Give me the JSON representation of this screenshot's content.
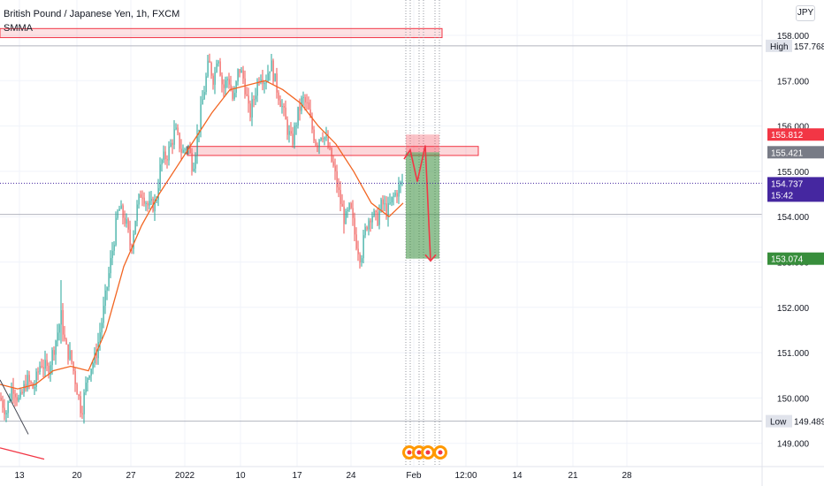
{
  "legend": {
    "title": "British Pound / Japanese Yen, 1h, FXCM",
    "indicator": "SMMA"
  },
  "currency_badge": "JPY",
  "price_labels": {
    "high_tag": "High",
    "high": "157.768",
    "low_tag": "Low",
    "low": "149.489",
    "stop": "155.812",
    "entry": "155.421",
    "last": "154.737",
    "countdown": "15:42",
    "target": "153.074"
  },
  "colors": {
    "up": "#26a69a",
    "down": "#ef5350",
    "line": "#f26522",
    "last": "#4527a0",
    "stop": "#f23645",
    "target": "#388e3c",
    "entry": "#787b86"
  },
  "chart_data": {
    "type": "candlestick",
    "symbol": "British Pound / Japanese Yen",
    "interval": "1h",
    "source": "FXCM",
    "indicator": "SMMA",
    "y_ticks": [
      149.0,
      150.0,
      151.0,
      152.0,
      153.0,
      154.0,
      155.0,
      156.0,
      157.0,
      158.0
    ],
    "ylim": [
      148.7,
      158.4
    ],
    "x_ticks": [
      "13",
      "20",
      "27",
      "2022",
      "10",
      "17",
      "24",
      "Feb",
      "12:00",
      "14",
      "21",
      "28"
    ],
    "trade": {
      "entry": 155.421,
      "stop": 155.812,
      "target": 153.074
    },
    "zone_high": [
      157.95,
      158.15
    ],
    "zone_mid": [
      155.35,
      155.55
    ],
    "swing_high": 157.768,
    "swing_low": 149.489,
    "last_price": 154.737,
    "close_path": [
      [
        0,
        150.0
      ],
      [
        7,
        149.7
      ],
      [
        14,
        150.3
      ],
      [
        22,
        149.9
      ],
      [
        30,
        150.4
      ],
      [
        38,
        150.2
      ],
      [
        46,
        150.8
      ],
      [
        54,
        150.6
      ],
      [
        62,
        151.2
      ],
      [
        69,
        151.8
      ],
      [
        74,
        151.1
      ],
      [
        80,
        150.9
      ],
      [
        86,
        150.3
      ],
      [
        92,
        149.7
      ],
      [
        100,
        150.6
      ],
      [
        108,
        150.9
      ],
      [
        116,
        151.8
      ],
      [
        122,
        152.6
      ],
      [
        128,
        153.4
      ],
      [
        134,
        154.2
      ],
      [
        142,
        153.9
      ],
      [
        148,
        153.3
      ],
      [
        154,
        154.1
      ],
      [
        160,
        154.6
      ],
      [
        168,
        154.2
      ],
      [
        176,
        154.3
      ],
      [
        182,
        155.2
      ],
      [
        190,
        155.4
      ],
      [
        198,
        155.9
      ],
      [
        206,
        155.4
      ],
      [
        212,
        155.6
      ],
      [
        218,
        155.1
      ],
      [
        224,
        155.9
      ],
      [
        230,
        156.7
      ],
      [
        236,
        157.4
      ],
      [
        242,
        157.0
      ],
      [
        246,
        157.7
      ],
      [
        252,
        156.8
      ],
      [
        258,
        157.1
      ],
      [
        264,
        156.5
      ],
      [
        270,
        157.3
      ],
      [
        276,
        157.0
      ],
      [
        282,
        156.2
      ],
      [
        288,
        156.7
      ],
      [
        294,
        157.2
      ],
      [
        300,
        157.0
      ],
      [
        306,
        157.4
      ],
      [
        312,
        156.9
      ],
      [
        318,
        156.5
      ],
      [
        324,
        156.0
      ],
      [
        330,
        155.6
      ],
      [
        336,
        156.2
      ],
      [
        342,
        156.6
      ],
      [
        348,
        156.4
      ],
      [
        352,
        156.0
      ],
      [
        358,
        155.6
      ],
      [
        364,
        155.9
      ],
      [
        370,
        155.6
      ],
      [
        378,
        155.0
      ],
      [
        384,
        154.4
      ],
      [
        390,
        153.9
      ],
      [
        396,
        154.2
      ],
      [
        402,
        153.5
      ],
      [
        408,
        153.1
      ],
      [
        414,
        153.8
      ],
      [
        420,
        154.1
      ],
      [
        426,
        153.9
      ],
      [
        432,
        154.3
      ],
      [
        438,
        154.1
      ],
      [
        444,
        154.4
      ],
      [
        450,
        154.6
      ],
      [
        456,
        154.8
      ]
    ],
    "smma_path": [
      [
        0,
        150.3
      ],
      [
        20,
        150.2
      ],
      [
        40,
        150.3
      ],
      [
        60,
        150.6
      ],
      [
        80,
        150.7
      ],
      [
        100,
        150.6
      ],
      [
        120,
        151.5
      ],
      [
        140,
        152.9
      ],
      [
        160,
        153.8
      ],
      [
        180,
        154.5
      ],
      [
        200,
        155.1
      ],
      [
        220,
        155.7
      ],
      [
        240,
        156.3
      ],
      [
        260,
        156.8
      ],
      [
        280,
        156.9
      ],
      [
        300,
        157.0
      ],
      [
        320,
        156.8
      ],
      [
        340,
        156.5
      ],
      [
        360,
        156.0
      ],
      [
        380,
        155.6
      ],
      [
        400,
        155.0
      ],
      [
        420,
        154.3
      ],
      [
        440,
        154.0
      ],
      [
        456,
        154.3
      ]
    ]
  }
}
